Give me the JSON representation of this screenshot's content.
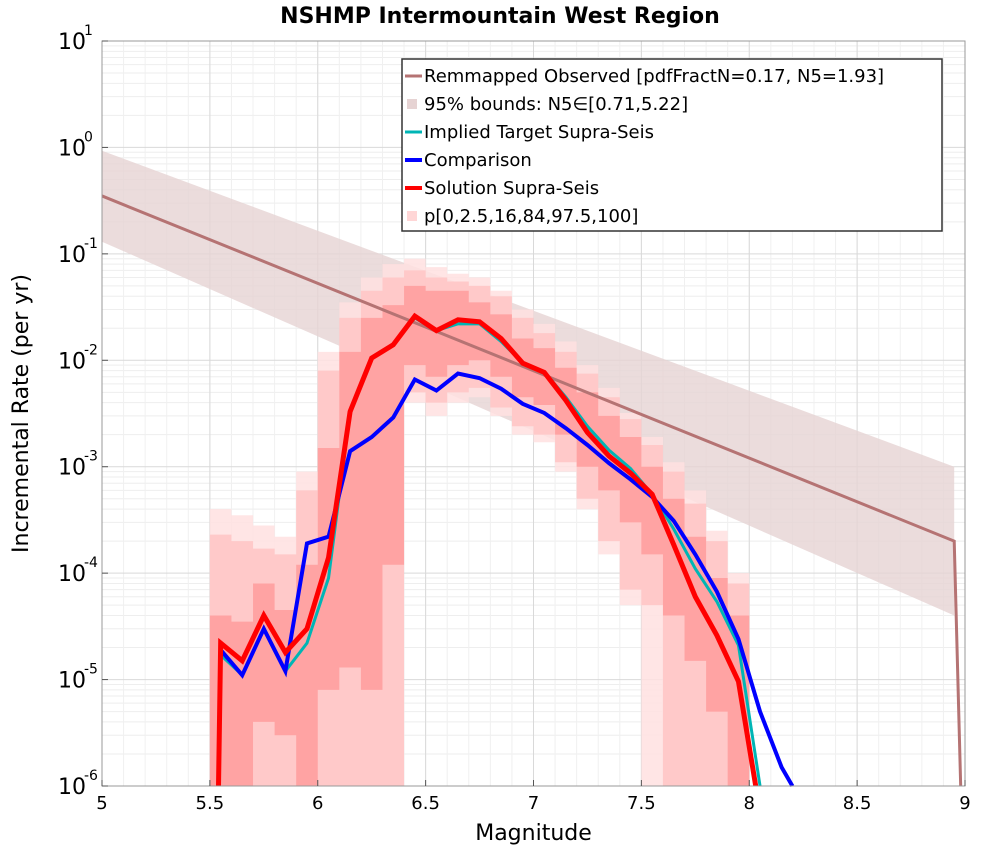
{
  "chart_data": {
    "type": "line",
    "title": "NSHMP Intermountain West Region",
    "xlabel": "Magnitude",
    "ylabel": "Incremental Rate (per yr)",
    "xlim": [
      5,
      9
    ],
    "ylim": [
      1e-06,
      10
    ],
    "yscale": "log",
    "grid": true,
    "legend_position": "top-right",
    "x_ticks": [
      "5",
      "5.5",
      "6",
      "6.5",
      "7",
      "7.5",
      "8",
      "8.5",
      "9"
    ],
    "y_ticks": [
      {
        "base": "10",
        "exp": "1",
        "value": 10
      },
      {
        "base": "10",
        "exp": "0",
        "value": 1
      },
      {
        "base": "10",
        "exp": "-1",
        "value": 0.1
      },
      {
        "base": "10",
        "exp": "-2",
        "value": 0.01
      },
      {
        "base": "10",
        "exp": "-3",
        "value": 0.001
      },
      {
        "base": "10",
        "exp": "-4",
        "value": 0.0001
      },
      {
        "base": "10",
        "exp": "-5",
        "value": 1e-05
      },
      {
        "base": "10",
        "exp": "-6",
        "value": 1e-06
      }
    ],
    "legend": [
      {
        "label": "Remmapped Observed [pdfFractN=0.17, N5=1.93]",
        "kind": "line",
        "color": "#b57373"
      },
      {
        "label": "95% bounds: N5∈[0.71,5.22]",
        "kind": "box",
        "color": "#e6d3d3"
      },
      {
        "label": "Implied Target Supra-Seis",
        "kind": "line",
        "color": "#00b5b5"
      },
      {
        "label": "Comparison",
        "kind": "line",
        "color": "#0000ff"
      },
      {
        "label": "Solution Supra-Seis",
        "kind": "line",
        "color": "#ff0000"
      },
      {
        "label": "p[0,2.5,16,84,97.5,100]",
        "kind": "box",
        "color": "#ffd6d6"
      }
    ],
    "series": [
      {
        "name": "Remmapped Observed [pdfFractN=0.17, N5=1.93]",
        "color": "#b57373",
        "x": [
          5.0,
          8.95,
          8.98
        ],
        "y": [
          0.35,
          0.0002,
          1e-06
        ]
      },
      {
        "name": "Implied Target Supra-Seis",
        "color": "#00b5b5",
        "x": [
          5.55,
          5.65,
          5.75,
          5.85,
          5.95,
          6.05,
          6.15,
          6.25,
          6.35,
          6.45,
          6.55,
          6.65,
          6.75,
          6.85,
          6.95,
          7.05,
          7.15,
          7.25,
          7.35,
          7.45,
          7.55,
          7.65,
          7.75,
          7.85,
          7.95,
          8.05
        ],
        "y": [
          1.7e-05,
          1.1e-05,
          3e-05,
          1.2e-05,
          2.2e-05,
          9e-05,
          0.0033,
          0.0105,
          0.014,
          0.025,
          0.019,
          0.022,
          0.022,
          0.015,
          0.0094,
          0.0078,
          0.0045,
          0.0024,
          0.00143,
          0.00096,
          0.00055,
          0.00026,
          0.00011,
          5.4e-05,
          2.1e-05,
          1e-06
        ]
      },
      {
        "name": "Comparison",
        "color": "#0000ff",
        "x": [
          5.55,
          5.65,
          5.75,
          5.85,
          5.95,
          6.05,
          6.15,
          6.25,
          6.35,
          6.45,
          6.55,
          6.65,
          6.75,
          6.85,
          6.95,
          7.05,
          7.15,
          7.25,
          7.35,
          7.45,
          7.55,
          7.65,
          7.75,
          7.85,
          7.95,
          8.05,
          8.15,
          8.2
        ],
        "y": [
          1.9e-05,
          1.1e-05,
          3e-05,
          1.2e-05,
          0.00019,
          0.00022,
          0.0014,
          0.0019,
          0.0029,
          0.0066,
          0.0052,
          0.0075,
          0.0068,
          0.0054,
          0.0039,
          0.0032,
          0.0023,
          0.0016,
          0.00108,
          0.00076,
          0.00052,
          0.00031,
          0.00015,
          6.7e-05,
          2.4e-05,
          5e-06,
          1.5e-06,
          1e-06
        ]
      },
      {
        "name": "Solution Supra-Seis",
        "color": "#ff0000",
        "x": [
          5.54,
          5.55,
          5.65,
          5.75,
          5.85,
          5.95,
          6.05,
          6.15,
          6.25,
          6.35,
          6.45,
          6.55,
          6.65,
          6.75,
          6.85,
          6.95,
          7.05,
          7.15,
          7.25,
          7.35,
          7.45,
          7.55,
          7.65,
          7.75,
          7.85,
          7.95,
          8.03
        ],
        "y": [
          1e-06,
          2.2e-05,
          1.5e-05,
          4e-05,
          1.8e-05,
          3e-05,
          0.00014,
          0.0033,
          0.0105,
          0.014,
          0.026,
          0.019,
          0.024,
          0.023,
          0.016,
          0.0094,
          0.0077,
          0.0042,
          0.0021,
          0.00126,
          0.00087,
          0.00055,
          0.000185,
          6e-05,
          2.6e-05,
          9.6e-06,
          1e-06
        ]
      }
    ],
    "bands": [
      {
        "name": "95% bounds: N5∈[0.71,5.22]",
        "color": "#e6d3d3",
        "x": [
          5.0,
          8.95
        ],
        "lower": [
          0.13,
          4e-05
        ],
        "upper": [
          0.93,
          0.001
        ]
      },
      {
        "name": "p[0,100]",
        "color": "#ffe1e1",
        "x": [
          5.55,
          5.65,
          5.75,
          5.85,
          5.95,
          6.05,
          6.15,
          6.25,
          6.35,
          6.45,
          6.55,
          6.65,
          6.75,
          6.85,
          6.95,
          7.05,
          7.15,
          7.25,
          7.35,
          7.45,
          7.55,
          7.65,
          7.75,
          7.85,
          7.95,
          8.05
        ],
        "lower": [
          1e-06,
          1e-06,
          1e-06,
          1e-06,
          1e-06,
          1e-06,
          1e-06,
          1e-06,
          1e-06,
          0.004,
          0.003,
          0.004,
          0.0045,
          0.003,
          0.002,
          0.0017,
          0.0009,
          0.0004,
          0.00015,
          5e-05,
          1e-06,
          1e-06,
          1e-06,
          1e-06,
          1e-06,
          1e-06
        ],
        "upper": [
          0.0004,
          0.00035,
          0.00028,
          0.00022,
          0.0009,
          0.012,
          0.035,
          0.06,
          0.08,
          0.09,
          0.075,
          0.065,
          0.06,
          0.045,
          0.03,
          0.022,
          0.015,
          0.009,
          0.0055,
          0.0032,
          0.0019,
          0.0011,
          0.0006,
          0.00025,
          0.0001,
          1e-06
        ]
      },
      {
        "name": "p[2.5,97.5]",
        "color": "#ffc4c4",
        "x": [
          5.55,
          5.65,
          5.75,
          5.85,
          5.95,
          6.05,
          6.15,
          6.25,
          6.35,
          6.45,
          6.55,
          6.65,
          6.75,
          6.85,
          6.95,
          7.05,
          7.15,
          7.25,
          7.35,
          7.45,
          7.55,
          7.65,
          7.75,
          7.85,
          7.95,
          8.05
        ],
        "lower": [
          1e-06,
          1e-06,
          1e-06,
          1e-06,
          1e-06,
          1e-06,
          1e-06,
          1e-06,
          1e-06,
          0.005,
          0.004,
          0.005,
          0.0055,
          0.0036,
          0.0024,
          0.002,
          0.0011,
          0.0005,
          0.0002,
          7e-05,
          5e-05,
          1e-06,
          1e-06,
          1e-06,
          1e-06,
          1e-06
        ],
        "upper": [
          0.00023,
          0.0002,
          0.00017,
          0.00015,
          0.0006,
          0.008,
          0.025,
          0.045,
          0.06,
          0.07,
          0.06,
          0.055,
          0.05,
          0.04,
          0.025,
          0.018,
          0.012,
          0.0075,
          0.0045,
          0.0028,
          0.0016,
          0.0009,
          0.00045,
          0.0002,
          8e-05,
          1e-06
        ]
      },
      {
        "name": "p[16,84]",
        "color": "#ff9c9c",
        "x": [
          5.55,
          5.65,
          5.75,
          5.85,
          5.95,
          6.05,
          6.15,
          6.25,
          6.35,
          6.45,
          6.55,
          6.65,
          6.75,
          6.85,
          6.95,
          7.05,
          7.15,
          7.25,
          7.35,
          7.45,
          7.55,
          7.65,
          7.75,
          7.85,
          7.95,
          8.05
        ],
        "lower": [
          1e-06,
          1e-06,
          4e-06,
          3e-06,
          1e-06,
          8e-06,
          1.3e-05,
          8e-06,
          0.00012,
          0.009,
          0.007,
          0.009,
          0.01,
          0.007,
          0.0045,
          0.0038,
          0.002,
          0.001,
          0.0006,
          0.0003,
          0.00015,
          4e-05,
          1.5e-05,
          5e-06,
          1e-06,
          1e-06
        ],
        "upper": [
          4e-05,
          3.5e-05,
          8e-05,
          4.5e-05,
          0.00012,
          0.0015,
          0.012,
          0.025,
          0.033,
          0.05,
          0.045,
          0.045,
          0.035,
          0.027,
          0.016,
          0.013,
          0.0085,
          0.005,
          0.003,
          0.0019,
          0.001,
          0.0005,
          0.00022,
          9e-05,
          4e-05,
          1e-06
        ]
      }
    ]
  }
}
